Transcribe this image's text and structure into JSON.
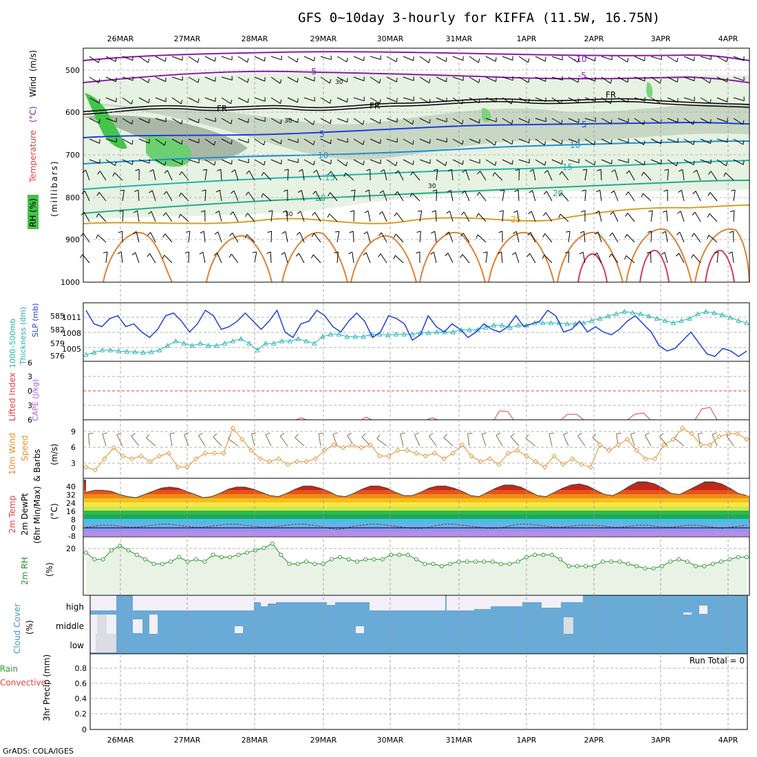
{
  "title": "GFS 0~10day 3-hourly for KIFFA (11.5W, 16.75N)",
  "footer": "GrADS: COLA/IGES",
  "dates": [
    "26MAR",
    "27MAR",
    "28MAR",
    "29MAR",
    "30MAR",
    "31MAR",
    "1APR",
    "2APR",
    "3APR",
    "4APR"
  ],
  "colors": {
    "grid": "#999999",
    "slp": "#1a3fd6",
    "thickness": "#20b2b2",
    "rh_fill": "#e8f3e5",
    "rh_line": "#2a8f2a",
    "wind10": "#e0902a",
    "sky_blue": "#6aaad6",
    "cloud_clear": "#f2f0f6"
  },
  "panels": {
    "profile": {
      "ylabels": [
        "Temperature",
        "(°C)",
        "Wind",
        "(m/s)"
      ],
      "ylabel_units": "(millibars)",
      "rh_label": "RH (%)",
      "levels": [
        "500",
        "600",
        "700",
        "800",
        "900",
        "1000"
      ],
      "isotherm_labels": [
        "-10",
        "-5",
        "FR",
        "5",
        "10",
        "15",
        "20",
        "25"
      ],
      "rh_contour_label": "30"
    },
    "slp": {
      "ylabel_a": "1000–500mb",
      "ylabel_b": "Thickness (dm)",
      "ylabel_c": "SLP (mb)",
      "left_ticks": [
        "585",
        "582",
        "579",
        "576"
      ],
      "right_ticks": [
        "1011",
        "1008",
        "1005"
      ]
    },
    "cape": {
      "ylabel_a": "Lifted Index",
      "ylabel_b": "CAPE (J/kg)",
      "ticks": [
        "6",
        "3",
        "0",
        "3",
        "6"
      ]
    },
    "wind10": {
      "ylabel_a": "10m Wind",
      "ylabel_b": "Speed",
      "ylabel_c": "& Barbs",
      "ylabel_d": "(m/s)",
      "ticks": [
        "9",
        "6",
        "3"
      ]
    },
    "temp2m": {
      "ylabel_a": "2m Temp",
      "ylabel_b": "2m DewPt",
      "ylabel_c": "(6hr Min/Max)",
      "ylabel_d": "(°C)",
      "ticks": [
        "40",
        "32",
        "24",
        "16",
        "8",
        "0",
        "-8"
      ]
    },
    "rh2m": {
      "ylabel_a": "2m RH",
      "ylabel_b": "(%)",
      "ticks": [
        "20"
      ]
    },
    "cloud": {
      "ylabel_a": "Cloud Cover",
      "ylabel_b": "(%)",
      "rows": [
        "high",
        "middle",
        "low"
      ]
    },
    "precip": {
      "ylabel_a": "Total / Rain",
      "ylabel_b": "Convective",
      "ylabel_c": "3hr Precip (mm)",
      "ticks": [
        "0.8",
        "0.6",
        "0.4",
        "0.2",
        "0"
      ],
      "run_total": "Run Total = 0"
    }
  },
  "chart_data": [
    {
      "type": "line",
      "name": "slp",
      "ylabel": "SLP (mb)",
      "ylim": [
        1003,
        1013
      ],
      "values": [
        1012,
        1009.5,
        1009,
        1010.5,
        1011,
        1009,
        1009.5,
        1008,
        1007,
        1008.5,
        1011,
        1011.5,
        1010,
        1008,
        1009.5,
        1012,
        1011,
        1008.5,
        1009,
        1010,
        1011.5,
        1010,
        1008.5,
        1010,
        1012,
        1008,
        1007,
        1009.5,
        1010,
        1012,
        1011,
        1009,
        1008,
        1010,
        1011.5,
        1010,
        1007,
        1008,
        1011,
        1010.5,
        1009.5,
        1006.5,
        1007.5,
        1011,
        1009,
        1008,
        1009.5,
        1008.5,
        1007,
        1008,
        1009.5,
        1008.5,
        1008,
        1009,
        1011,
        1009,
        1009.5,
        1010,
        1012,
        1011,
        1008,
        1008.5,
        1010,
        1008,
        1009,
        1008,
        1007.5,
        1008.5,
        1010,
        1011,
        1009.5,
        1008,
        1005.5,
        1004.5,
        1005,
        1006.5,
        1008,
        1006,
        1004,
        1003.5,
        1005,
        1004.5,
        1003.5,
        1004.5
      ]
    },
    {
      "type": "line",
      "name": "thickness",
      "ylabel": "Thickness (dm)",
      "ylim": [
        575,
        587
      ],
      "values": [
        576,
        576.5,
        577,
        577,
        576.8,
        576.7,
        576.6,
        576.5,
        576.6,
        577,
        578,
        579,
        578.5,
        578,
        578.5,
        578,
        578,
        578.5,
        579,
        579.5,
        578.5,
        577,
        578.5,
        578.5,
        579,
        579,
        579.5,
        579,
        578.5,
        580,
        580.5,
        580.5,
        580,
        580,
        580,
        580.5,
        580.5,
        580.3,
        580.5,
        580.5,
        580.5,
        580.8,
        580.8,
        581,
        581,
        581,
        581.5,
        581.5,
        581.5,
        582,
        582.5,
        582.5,
        582,
        582.5,
        582.5,
        583,
        583,
        583,
        583,
        582.8,
        582.8,
        583,
        583.5,
        584,
        584.5,
        585,
        585.5,
        585.3,
        585,
        584.5,
        584,
        583.5,
        583,
        583.5,
        584,
        585,
        585.5,
        585.2,
        584.8,
        584.2,
        583.5,
        583
      ]
    },
    {
      "type": "line",
      "name": "10m wind speed",
      "ylabel": "(m/s)",
      "ylim": [
        0,
        10.5
      ],
      "values": [
        2,
        1.5,
        3.5,
        5.5,
        4,
        3.5,
        4,
        3,
        4,
        4.5,
        2,
        2,
        3.5,
        4.5,
        4.5,
        4.5,
        9,
        7,
        5,
        3.5,
        3,
        3.5,
        2.5,
        3,
        3,
        3.5,
        5,
        6,
        5.5,
        6,
        5.5,
        6,
        4,
        4,
        5,
        5,
        4.5,
        4,
        4.5,
        3.5,
        4.5,
        6,
        4,
        3,
        3.5,
        2.5,
        4.5,
        5,
        4,
        3,
        2,
        4,
        2.5,
        3.5,
        2.5,
        2,
        6,
        5,
        6,
        7,
        5,
        3.5,
        3.5,
        6,
        7,
        9,
        8,
        6,
        6,
        7.5,
        8,
        8,
        7
      ]
    },
    {
      "type": "line",
      "name": "2m RH",
      "ylabel": "(%)",
      "ylim": [
        0,
        25
      ],
      "values": [
        18,
        15,
        15,
        19,
        21,
        19,
        17,
        15,
        13,
        13,
        14,
        16,
        14,
        15,
        14,
        17,
        16,
        16,
        17,
        18,
        19,
        20,
        22,
        17,
        13,
        13,
        14,
        13,
        13,
        15,
        16,
        15,
        14,
        15,
        15,
        15,
        17,
        17,
        17,
        15,
        13,
        13,
        12,
        13,
        14,
        14,
        14,
        14,
        14,
        13,
        13,
        14,
        16,
        17,
        17,
        17,
        15,
        12,
        12,
        12,
        12,
        14,
        14,
        14,
        13,
        12,
        11,
        11,
        12,
        14,
        15,
        14,
        12,
        12,
        13,
        14,
        15,
        16,
        16
      ]
    },
    {
      "type": "area",
      "name": "2m temperature",
      "ylabel": "(°C)",
      "ylim": [
        -10,
        44
      ],
      "values": [
        32,
        34,
        34,
        33,
        30,
        28,
        27,
        30,
        33,
        36,
        37,
        36,
        33,
        30,
        27,
        28,
        31,
        35,
        37,
        37,
        35,
        32,
        29,
        28,
        31,
        35,
        38,
        38,
        36,
        33,
        29,
        28,
        31,
        35,
        38,
        38,
        36,
        32,
        29,
        29,
        32,
        36,
        38,
        38,
        36,
        33,
        29,
        28,
        32,
        36,
        39,
        39,
        37,
        33,
        29,
        28,
        32,
        36,
        39,
        40,
        38,
        34,
        30,
        29,
        33,
        38,
        42,
        42,
        40,
        36,
        31,
        30,
        34,
        38,
        42,
        42,
        40,
        36,
        31,
        29
      ]
    },
    {
      "type": "line",
      "name": "2m dewpoint",
      "ylabel": "(°C)",
      "ylim": [
        -10,
        44
      ],
      "values": [
        -1,
        0,
        1,
        1,
        0,
        -1,
        -1,
        0,
        1,
        2,
        2,
        1,
        0,
        -1,
        -1,
        0,
        1,
        2,
        2,
        1,
        0,
        -1,
        -1,
        0,
        1,
        2,
        2,
        1,
        0,
        -2,
        -3,
        -2,
        0,
        1,
        2,
        2,
        1,
        0,
        -1,
        -2,
        -2,
        -1,
        1,
        2,
        2,
        1,
        0,
        -1,
        -2,
        -2,
        -1,
        1,
        2,
        2,
        1,
        0,
        -1,
        -1,
        0,
        1,
        1,
        1,
        0,
        -1,
        -1,
        0,
        1,
        1,
        0,
        -1,
        -1,
        0,
        1,
        1,
        0,
        -1,
        -2,
        -1,
        0,
        1
      ]
    },
    {
      "type": "bar",
      "name": "3hr precip",
      "ylabel": "3hr Precip (mm)",
      "ylim": [
        0,
        1
      ],
      "values": [
        0
      ]
    }
  ]
}
